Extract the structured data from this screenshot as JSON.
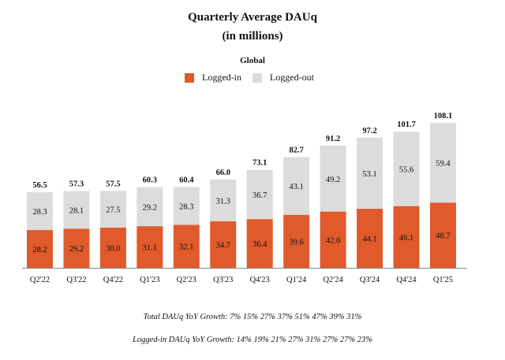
{
  "chart_data": {
    "type": "bar",
    "stacked": true,
    "title": "Quarterly Average DAUq",
    "subtitle": "(in millions)",
    "region_label": "Global",
    "categories": [
      "Q2'22",
      "Q3'22",
      "Q4'22",
      "Q1'23",
      "Q2'23",
      "Q3'23",
      "Q4'23",
      "Q1'24",
      "Q2'24",
      "Q3'24",
      "Q4'24",
      "Q1'25"
    ],
    "series": [
      {
        "name": "Logged-in",
        "color": "#e05a2b",
        "values": [
          28.2,
          29.2,
          30.0,
          31.1,
          32.1,
          34.7,
          36.4,
          39.6,
          42.0,
          44.1,
          46.1,
          48.7
        ]
      },
      {
        "name": "Logged-out",
        "color": "#dcdcdc",
        "values": [
          28.3,
          28.1,
          27.5,
          29.2,
          28.3,
          31.3,
          36.7,
          43.1,
          49.2,
          53.1,
          55.6,
          59.4
        ]
      }
    ],
    "totals": [
      "56.5",
      "57.3",
      "57.5",
      "60.3",
      "60.4",
      "66.0",
      "73.1",
      "82.7",
      "91.2",
      "97.2",
      "101.7",
      "108.1"
    ],
    "ylim": [
      0,
      110
    ],
    "legend_position": "top-center",
    "grid": false
  },
  "footnotes": {
    "total_growth": "Total DAUq YoY Growth:  7%  15% 27% 37% 51% 47% 39% 31%",
    "loggedin_growth": "Logged-in DAUq YoY Growth: 14% 19% 21% 27% 31% 27% 27% 23%"
  }
}
